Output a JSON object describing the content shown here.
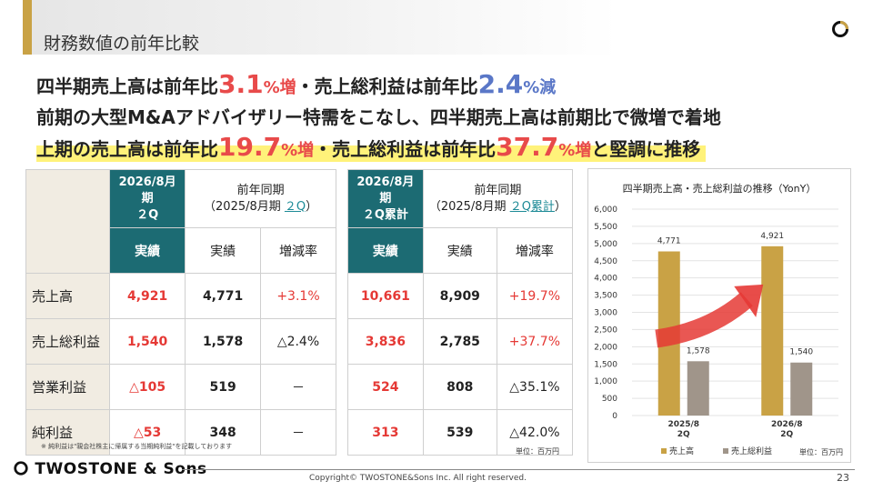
{
  "header": {
    "title": "財務数値の前年比較"
  },
  "headlines": {
    "line1": {
      "p1": "四半期売上高は前年比",
      "n1": "3.1",
      "s1": "%増",
      "p2": "・売上総利益は前年比",
      "n2": "2.4",
      "s2": "%減"
    },
    "line2": "前期の大型M&Aアドバイザリー特需をこなし、四半期売上高は前期比で微増で着地",
    "line3": {
      "p1": "上期の売上高は前年比",
      "n1": "19.7",
      "s1": "%増",
      "p2": "・売上総利益は前年比",
      "n2": "37.7",
      "s2": "%増",
      "p3": "と堅調に推移"
    }
  },
  "table_q": {
    "cur_header_l1": "2026/8月期",
    "cur_header_l2": "２Q",
    "prev_header_l1": "前年同期",
    "prev_header_l2a": "（2025/8月期 ",
    "prev_header_l2b": "２Q",
    "prev_header_l2c": "）",
    "sub": [
      "実績",
      "実績",
      "増減率"
    ],
    "rows": [
      {
        "label": "売上高",
        "cur": "4,921",
        "prev": "4,771",
        "rate": "+3.1%"
      },
      {
        "label": "売上総利益",
        "cur": "1,540",
        "prev": "1,578",
        "rate": "△2.4%"
      },
      {
        "label": "営業利益",
        "cur": "△105",
        "prev": "519",
        "rate": "－"
      },
      {
        "label": "純利益",
        "cur": "△53",
        "prev": "348",
        "rate": "－"
      }
    ]
  },
  "table_cum": {
    "cur_header_l1": "2026/8月期",
    "cur_header_l2": "２Q累計",
    "prev_header_l1": "前年同期",
    "prev_header_l2a": "（2025/8月期 ",
    "prev_header_l2b": "２Q累計",
    "prev_header_l2c": "）",
    "sub": [
      "実績",
      "実績",
      "増減率"
    ],
    "rows": [
      {
        "cur": "10,661",
        "prev": "8,909",
        "rate": "+19.7%"
      },
      {
        "cur": "3,836",
        "prev": "2,785",
        "rate": "+37.7%"
      },
      {
        "cur": "524",
        "prev": "808",
        "rate": "△35.1%"
      },
      {
        "cur": "313",
        "prev": "539",
        "rate": "△42.0%"
      }
    ]
  },
  "footnote": "※ 純利益は\"親会社株主に帰属する当期純利益\"を記載しております",
  "unit_tables": "単位：百万円",
  "chart_data": {
    "type": "bar",
    "title": "四半期売上高・売上総利益の推移（YonY）",
    "categories": [
      [
        "2025/8",
        "2Q"
      ],
      [
        "2026/8",
        "2Q"
      ]
    ],
    "series": [
      {
        "name": "売上高",
        "values": [
          4771,
          4921
        ],
        "color": "#c9a245"
      },
      {
        "name": "売上総利益",
        "values": [
          1578,
          1540
        ],
        "color": "#a0958a"
      }
    ],
    "value_labels": [
      [
        "4,771",
        "4,921"
      ],
      [
        "1,578",
        "1,540"
      ]
    ],
    "yticks": [
      "0",
      "500",
      "1,000",
      "1,500",
      "2,000",
      "2,500",
      "3,000",
      "3,500",
      "4,000",
      "4,500",
      "5,000",
      "5,500",
      "6,000"
    ],
    "ylim": [
      0,
      6000
    ],
    "legend_position": "bottom",
    "unit": "単位：百万円"
  },
  "footer": {
    "logo": "TWOSTONE & Sons",
    "copyright": "Copyright© TWOSTONE&Sons Inc. All right reserved.",
    "page": "23"
  },
  "colors": {
    "accent_gold": "#c9a245",
    "teal": "#1c6b73",
    "red": "#e84a4a",
    "blue": "#5a77c7"
  }
}
